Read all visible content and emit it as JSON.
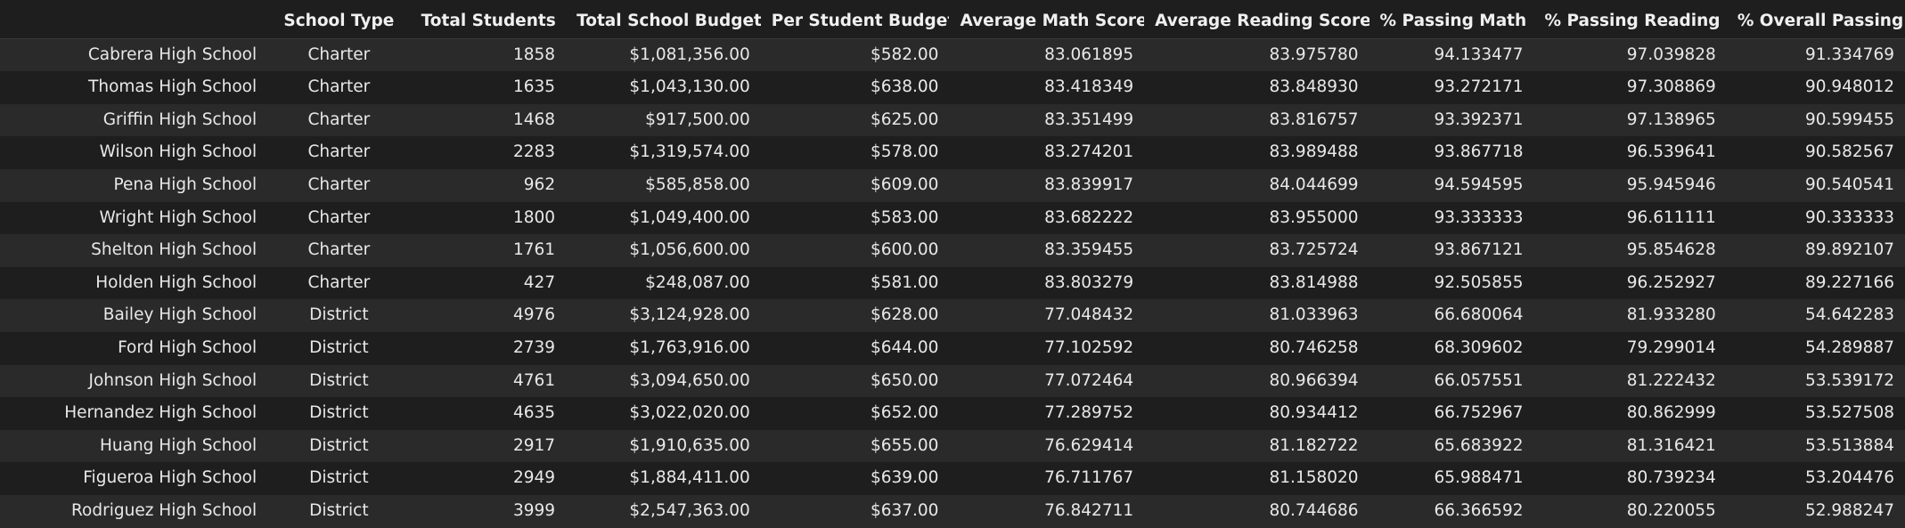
{
  "chart_data": {
    "type": "table",
    "columns": [
      "",
      "School Type",
      "Total Students",
      "Total School Budget",
      "Per Student Budget",
      "Average Math Score",
      "Average Reading Score",
      "% Passing Math",
      "% Passing Reading",
      "% Overall Passing"
    ],
    "rows": [
      [
        "Cabrera High School",
        "Charter",
        "1858",
        "$1,081,356.00",
        "$582.00",
        "83.061895",
        "83.975780",
        "94.133477",
        "97.039828",
        "91.334769"
      ],
      [
        "Thomas High School",
        "Charter",
        "1635",
        "$1,043,130.00",
        "$638.00",
        "83.418349",
        "83.848930",
        "93.272171",
        "97.308869",
        "90.948012"
      ],
      [
        "Griffin High School",
        "Charter",
        "1468",
        "$917,500.00",
        "$625.00",
        "83.351499",
        "83.816757",
        "93.392371",
        "97.138965",
        "90.599455"
      ],
      [
        "Wilson High School",
        "Charter",
        "2283",
        "$1,319,574.00",
        "$578.00",
        "83.274201",
        "83.989488",
        "93.867718",
        "96.539641",
        "90.582567"
      ],
      [
        "Pena High School",
        "Charter",
        "962",
        "$585,858.00",
        "$609.00",
        "83.839917",
        "84.044699",
        "94.594595",
        "95.945946",
        "90.540541"
      ],
      [
        "Wright High School",
        "Charter",
        "1800",
        "$1,049,400.00",
        "$583.00",
        "83.682222",
        "83.955000",
        "93.333333",
        "96.611111",
        "90.333333"
      ],
      [
        "Shelton High School",
        "Charter",
        "1761",
        "$1,056,600.00",
        "$600.00",
        "83.359455",
        "83.725724",
        "93.867121",
        "95.854628",
        "89.892107"
      ],
      [
        "Holden High School",
        "Charter",
        "427",
        "$248,087.00",
        "$581.00",
        "83.803279",
        "83.814988",
        "92.505855",
        "96.252927",
        "89.227166"
      ],
      [
        "Bailey High School",
        "District",
        "4976",
        "$3,124,928.00",
        "$628.00",
        "77.048432",
        "81.033963",
        "66.680064",
        "81.933280",
        "54.642283"
      ],
      [
        "Ford High School",
        "District",
        "2739",
        "$1,763,916.00",
        "$644.00",
        "77.102592",
        "80.746258",
        "68.309602",
        "79.299014",
        "54.289887"
      ],
      [
        "Johnson High School",
        "District",
        "4761",
        "$3,094,650.00",
        "$650.00",
        "77.072464",
        "80.966394",
        "66.057551",
        "81.222432",
        "53.539172"
      ],
      [
        "Hernandez High School",
        "District",
        "4635",
        "$3,022,020.00",
        "$652.00",
        "77.289752",
        "80.934412",
        "66.752967",
        "80.862999",
        "53.527508"
      ],
      [
        "Huang High School",
        "District",
        "2917",
        "$1,910,635.00",
        "$655.00",
        "76.629414",
        "81.182722",
        "65.683922",
        "81.316421",
        "53.513884"
      ],
      [
        "Figueroa High School",
        "District",
        "2949",
        "$1,884,411.00",
        "$639.00",
        "76.711767",
        "81.158020",
        "65.988471",
        "80.739234",
        "53.204476"
      ],
      [
        "Rodriguez High School",
        "District",
        "3999",
        "$2,547,363.00",
        "$637.00",
        "76.842711",
        "80.744686",
        "66.366592",
        "80.220055",
        "52.988247"
      ]
    ]
  },
  "colors": {
    "background": "#1e1e1e",
    "stripe": "#2a2a2a",
    "text": "#e8e8e8"
  }
}
